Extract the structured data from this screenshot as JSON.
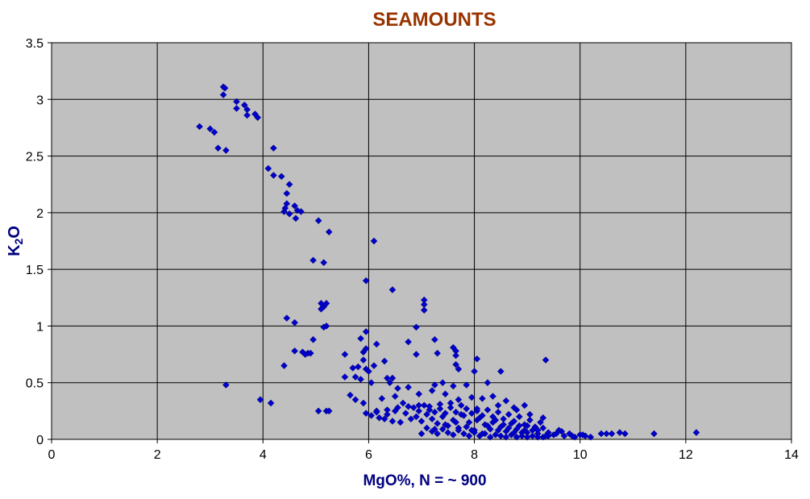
{
  "chart_data": {
    "type": "scatter",
    "title": "SEAMOUNTS",
    "xlabel": "MgO%,  N = ~ 900",
    "ylabel_main": "K",
    "ylabel_sub": "2",
    "ylabel_tail": "O",
    "xlim": [
      0,
      14
    ],
    "ylim": [
      0,
      3.5
    ],
    "x_ticks": [
      "0",
      "2",
      "4",
      "6",
      "8",
      "10",
      "12",
      "14"
    ],
    "y_ticks": [
      "0",
      "0.5",
      "1",
      "1.5",
      "2",
      "2.5",
      "3",
      "3.5"
    ],
    "grid": true,
    "legend": "none",
    "colors": {
      "title": "#993300",
      "axis_label": "#000080",
      "marker": "#0000cc",
      "plot_bg": "#c0c0c0",
      "grid": "#000000"
    },
    "points": [
      [
        3.25,
        3.11
      ],
      [
        3.28,
        3.1
      ],
      [
        3.25,
        3.04
      ],
      [
        3.5,
        2.98
      ],
      [
        3.5,
        2.92
      ],
      [
        3.65,
        2.95
      ],
      [
        3.7,
        2.91
      ],
      [
        3.7,
        2.86
      ],
      [
        3.85,
        2.87
      ],
      [
        3.9,
        2.84
      ],
      [
        2.8,
        2.76
      ],
      [
        3.0,
        2.74
      ],
      [
        3.08,
        2.71
      ],
      [
        3.15,
        2.57
      ],
      [
        3.3,
        2.55
      ],
      [
        4.2,
        2.57
      ],
      [
        4.1,
        2.39
      ],
      [
        4.2,
        2.33
      ],
      [
        4.35,
        2.32
      ],
      [
        4.5,
        2.25
      ],
      [
        4.45,
        2.17
      ],
      [
        4.45,
        2.08
      ],
      [
        4.42,
        2.04
      ],
      [
        4.4,
        2.01
      ],
      [
        4.5,
        1.99
      ],
      [
        4.6,
        2.06
      ],
      [
        4.65,
        2.02
      ],
      [
        4.72,
        2.01
      ],
      [
        4.62,
        1.95
      ],
      [
        5.05,
        1.93
      ],
      [
        5.25,
        1.83
      ],
      [
        6.1,
        1.75
      ],
      [
        4.95,
        1.58
      ],
      [
        5.15,
        1.56
      ],
      [
        5.95,
        1.4
      ],
      [
        6.45,
        1.32
      ],
      [
        7.05,
        1.23
      ],
      [
        7.05,
        1.19
      ],
      [
        7.05,
        1.14
      ],
      [
        5.1,
        1.2
      ],
      [
        5.15,
        1.17
      ],
      [
        5.2,
        1.2
      ],
      [
        5.1,
        1.15
      ],
      [
        4.45,
        1.07
      ],
      [
        4.6,
        1.03
      ],
      [
        5.2,
        1.0
      ],
      [
        5.15,
        0.99
      ],
      [
        6.9,
        0.99
      ],
      [
        5.95,
        0.95
      ],
      [
        5.85,
        0.89
      ],
      [
        6.15,
        0.84
      ],
      [
        6.75,
        0.86
      ],
      [
        7.25,
        0.88
      ],
      [
        7.6,
        0.81
      ],
      [
        7.65,
        0.78
      ],
      [
        5.95,
        0.8
      ],
      [
        5.9,
        0.77
      ],
      [
        6.9,
        0.75
      ],
      [
        7.3,
        0.76
      ],
      [
        7.65,
        0.74
      ],
      [
        8.05,
        0.71
      ],
      [
        9.35,
        0.7
      ],
      [
        4.6,
        0.78
      ],
      [
        4.75,
        0.77
      ],
      [
        4.85,
        0.76
      ],
      [
        4.95,
        0.88
      ],
      [
        4.9,
        0.76
      ],
      [
        4.8,
        0.75
      ],
      [
        5.55,
        0.75
      ],
      [
        5.9,
        0.7
      ],
      [
        6.3,
        0.69
      ],
      [
        5.95,
        0.62
      ],
      [
        5.8,
        0.64
      ],
      [
        5.7,
        0.63
      ],
      [
        6.0,
        0.6
      ],
      [
        6.1,
        0.65
      ],
      [
        4.4,
        0.65
      ],
      [
        7.65,
        0.66
      ],
      [
        7.7,
        0.62
      ],
      [
        7.25,
        0.48
      ],
      [
        7.4,
        0.5
      ],
      [
        7.6,
        0.47
      ],
      [
        7.85,
        0.48
      ],
      [
        8.25,
        0.5
      ],
      [
        8.0,
        0.6
      ],
      [
        8.5,
        0.6
      ],
      [
        6.35,
        0.54
      ],
      [
        6.45,
        0.54
      ],
      [
        6.4,
        0.5
      ],
      [
        6.05,
        0.5
      ],
      [
        5.85,
        0.53
      ],
      [
        5.75,
        0.55
      ],
      [
        5.55,
        0.55
      ],
      [
        6.55,
        0.45
      ],
      [
        6.75,
        0.46
      ],
      [
        6.95,
        0.4
      ],
      [
        7.2,
        0.43
      ],
      [
        7.45,
        0.4
      ],
      [
        7.7,
        0.35
      ],
      [
        7.95,
        0.37
      ],
      [
        8.15,
        0.36
      ],
      [
        8.35,
        0.38
      ],
      [
        8.6,
        0.34
      ],
      [
        5.65,
        0.39
      ],
      [
        5.75,
        0.35
      ],
      [
        5.9,
        0.32
      ],
      [
        6.25,
        0.36
      ],
      [
        6.5,
        0.38
      ],
      [
        6.65,
        0.32
      ],
      [
        3.3,
        0.48
      ],
      [
        3.95,
        0.35
      ],
      [
        4.15,
        0.32
      ],
      [
        5.05,
        0.25
      ],
      [
        5.2,
        0.25
      ],
      [
        5.25,
        0.25
      ],
      [
        5.95,
        0.23
      ],
      [
        6.05,
        0.21
      ],
      [
        6.2,
        0.19
      ],
      [
        6.35,
        0.22
      ],
      [
        6.5,
        0.25
      ],
      [
        6.7,
        0.23
      ],
      [
        6.15,
        0.25
      ],
      [
        6.3,
        0.18
      ],
      [
        6.45,
        0.16
      ],
      [
        6.6,
        0.15
      ],
      [
        6.8,
        0.18
      ],
      [
        6.9,
        0.2
      ],
      [
        7.0,
        0.16
      ],
      [
        7.1,
        0.22
      ],
      [
        7.2,
        0.18
      ],
      [
        7.3,
        0.14
      ],
      [
        7.4,
        0.2
      ],
      [
        7.5,
        0.12
      ],
      [
        7.6,
        0.17
      ],
      [
        7.7,
        0.1
      ],
      [
        7.8,
        0.21
      ],
      [
        7.9,
        0.15
      ],
      [
        8.0,
        0.08
      ],
      [
        8.1,
        0.19
      ],
      [
        8.2,
        0.13
      ],
      [
        8.3,
        0.09
      ],
      [
        8.4,
        0.17
      ],
      [
        8.5,
        0.11
      ],
      [
        8.6,
        0.07
      ],
      [
        8.7,
        0.14
      ],
      [
        8.8,
        0.09
      ],
      [
        8.9,
        0.06
      ],
      [
        9.0,
        0.12
      ],
      [
        9.1,
        0.08
      ],
      [
        9.2,
        0.05
      ],
      [
        9.3,
        0.1
      ],
      [
        9.4,
        0.06
      ],
      [
        9.5,
        0.04
      ],
      [
        9.6,
        0.08
      ],
      [
        9.7,
        0.03
      ],
      [
        9.8,
        0.05
      ],
      [
        9.9,
        0.02
      ],
      [
        10.0,
        0.04
      ],
      [
        10.1,
        0.03
      ],
      [
        10.2,
        0.02
      ],
      [
        6.85,
        0.28
      ],
      [
        6.95,
        0.25
      ],
      [
        7.05,
        0.3
      ],
      [
        7.15,
        0.26
      ],
      [
        7.25,
        0.24
      ],
      [
        7.35,
        0.27
      ],
      [
        7.45,
        0.23
      ],
      [
        7.55,
        0.28
      ],
      [
        7.65,
        0.24
      ],
      [
        7.75,
        0.22
      ],
      [
        7.85,
        0.27
      ],
      [
        7.95,
        0.23
      ],
      [
        8.05,
        0.25
      ],
      [
        8.15,
        0.21
      ],
      [
        8.25,
        0.26
      ],
      [
        8.35,
        0.2
      ],
      [
        8.45,
        0.24
      ],
      [
        8.55,
        0.18
      ],
      [
        8.65,
        0.22
      ],
      [
        8.75,
        0.16
      ],
      [
        8.85,
        0.2
      ],
      [
        8.95,
        0.13
      ],
      [
        9.05,
        0.17
      ],
      [
        9.15,
        0.11
      ],
      [
        9.25,
        0.15
      ],
      [
        7.0,
        0.05
      ],
      [
        7.1,
        0.1
      ],
      [
        7.2,
        0.07
      ],
      [
        7.3,
        0.05
      ],
      [
        7.4,
        0.09
      ],
      [
        7.5,
        0.06
      ],
      [
        7.6,
        0.04
      ],
      [
        7.7,
        0.08
      ],
      [
        7.8,
        0.05
      ],
      [
        7.9,
        0.03
      ],
      [
        8.0,
        0.06
      ],
      [
        8.1,
        0.03
      ],
      [
        8.2,
        0.05
      ],
      [
        8.3,
        0.02
      ],
      [
        8.4,
        0.04
      ],
      [
        8.5,
        0.03
      ],
      [
        8.6,
        0.02
      ],
      [
        8.7,
        0.04
      ],
      [
        8.8,
        0.02
      ],
      [
        8.9,
        0.03
      ],
      [
        9.0,
        0.02
      ],
      [
        9.1,
        0.03
      ],
      [
        9.2,
        0.02
      ],
      [
        9.3,
        0.02
      ],
      [
        9.4,
        0.03
      ],
      [
        10.4,
        0.05
      ],
      [
        10.5,
        0.05
      ],
      [
        10.6,
        0.05
      ],
      [
        10.75,
        0.06
      ],
      [
        10.85,
        0.05
      ],
      [
        11.4,
        0.05
      ],
      [
        12.2,
        0.06
      ],
      [
        9.3,
        0.19
      ],
      [
        9.05,
        0.22
      ],
      [
        8.8,
        0.26
      ],
      [
        8.95,
        0.3
      ],
      [
        9.2,
        0.08
      ],
      [
        8.75,
        0.28
      ],
      [
        8.45,
        0.3
      ],
      [
        8.05,
        0.27
      ],
      [
        7.75,
        0.3
      ],
      [
        7.55,
        0.32
      ],
      [
        7.35,
        0.31
      ],
      [
        7.15,
        0.29
      ],
      [
        6.95,
        0.3
      ],
      [
        6.75,
        0.29
      ],
      [
        6.55,
        0.28
      ],
      [
        6.35,
        0.26
      ],
      [
        6.15,
        0.24
      ],
      [
        8.25,
        0.12
      ],
      [
        8.45,
        0.08
      ],
      [
        8.65,
        0.1
      ],
      [
        8.85,
        0.12
      ],
      [
        9.0,
        0.06
      ],
      [
        9.35,
        0.03
      ],
      [
        9.55,
        0.05
      ],
      [
        9.65,
        0.07
      ],
      [
        9.85,
        0.03
      ],
      [
        10.05,
        0.04
      ],
      [
        7.25,
        0.09
      ],
      [
        7.45,
        0.13
      ],
      [
        7.65,
        0.15
      ],
      [
        7.85,
        0.11
      ],
      [
        8.05,
        0.17
      ],
      [
        8.15,
        0.05
      ],
      [
        8.35,
        0.15
      ],
      [
        8.55,
        0.13
      ],
      [
        7.95,
        0.08
      ],
      [
        8.75,
        0.06
      ],
      [
        8.95,
        0.08
      ]
    ]
  }
}
